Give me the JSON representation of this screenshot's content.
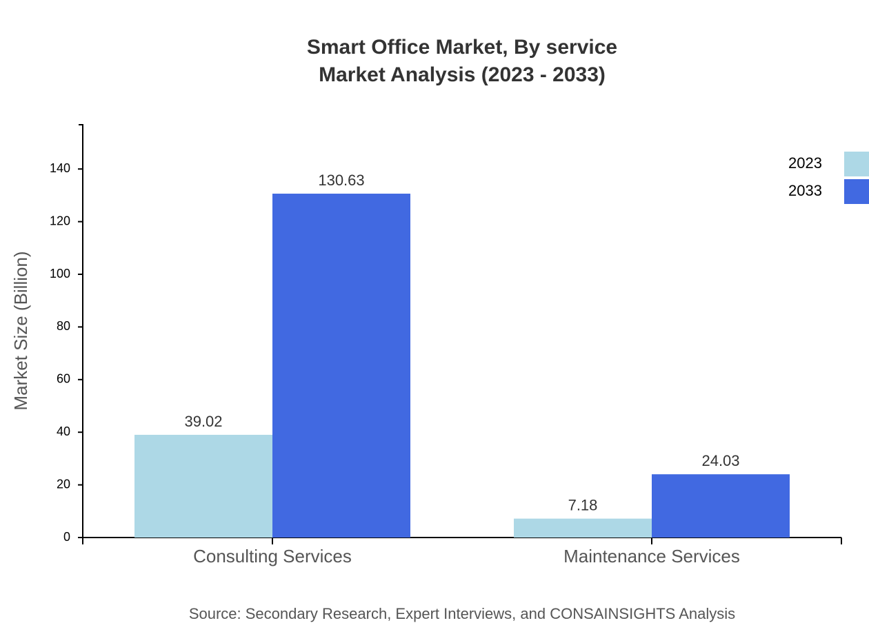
{
  "chart_data": {
    "type": "bar",
    "title": "Smart Office Market, By service",
    "subtitle": "Market Analysis (2023 - 2033)",
    "y_label": "Market Size (Billion)",
    "source": "Source: Secondary Research, Expert Interviews, and CONSAINSIGHTS Analysis",
    "categories": [
      "Consulting Services",
      "Maintenance Services"
    ],
    "series": [
      {
        "name": "2023",
        "color": "#add8e6",
        "values": [
          39.02,
          7.18
        ]
      },
      {
        "name": "2033",
        "color": "#4169e1",
        "values": [
          130.63,
          24.03
        ]
      }
    ],
    "ylim": [
      0,
      157
    ],
    "yticks": [
      0,
      20,
      40,
      60,
      80,
      100,
      120,
      140
    ],
    "legend": "top-right"
  }
}
